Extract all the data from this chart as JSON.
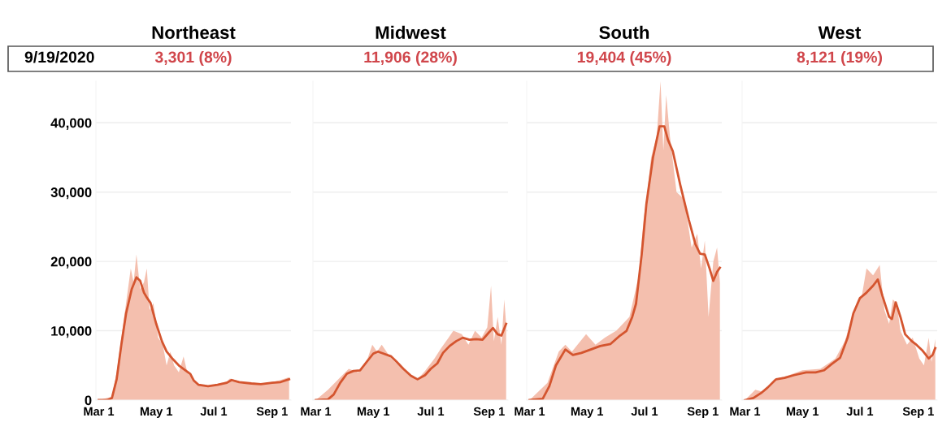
{
  "chart_data": [
    {
      "type": "area",
      "title": "Northeast",
      "annotations": [
        "9/19/2020",
        "3,301 (8%)"
      ],
      "xlim": [
        "2020-02-27",
        "2020-09-21"
      ],
      "xticks": [
        {
          "value": "2020-03-01",
          "label": "Mar 1"
        },
        {
          "value": "2020-05-01",
          "label": "May 1"
        },
        {
          "value": "2020-07-01",
          "label": "Jul 1"
        },
        {
          "value": "2020-09-01",
          "label": "Sep 1"
        }
      ],
      "ylim": [
        0,
        46000
      ],
      "yticks": [
        0,
        {
          "value": 10000,
          "label": "10,000"
        },
        {
          "value": 20000,
          "label": "20,000"
        },
        {
          "value": 30000,
          "label": "30,000"
        },
        {
          "value": 40000,
          "label": "40,000"
        }
      ],
      "grid": "y",
      "series": [
        {
          "color": "#f4bfae",
          "x": [
            "2020-03-01",
            "2020-03-15",
            "2020-03-20",
            "2020-03-25",
            "2020-03-30",
            "2020-04-04",
            "2020-04-07",
            "2020-04-10",
            "2020-04-14",
            "2020-04-18",
            "2020-04-21",
            "2020-04-24",
            "2020-04-28",
            "2020-05-03",
            "2020-05-08",
            "2020-05-12",
            "2020-05-16",
            "2020-05-20",
            "2020-05-25",
            "2020-05-30",
            "2020-06-03",
            "2020-06-10",
            "2020-06-20",
            "2020-07-01",
            "2020-07-15",
            "2020-07-18",
            "2020-08-01",
            "2020-08-20",
            "2020-09-01",
            "2020-09-10",
            "2020-09-19"
          ],
          "values": [
            0,
            500,
            4000,
            9000,
            14000,
            19000,
            17000,
            21000,
            16000,
            17000,
            19000,
            13000,
            14000,
            9000,
            8000,
            5000,
            7000,
            5000,
            4000,
            6300,
            4000,
            2700,
            2000,
            2200,
            2700,
            3100,
            2600,
            2400,
            2600,
            2900,
            3300
          ]
        },
        {
          "type": "line",
          "color": "#d4552f",
          "x": [
            "2020-03-01",
            "2020-03-10",
            "2020-03-15",
            "2020-03-20",
            "2020-03-25",
            "2020-03-30",
            "2020-04-05",
            "2020-04-10",
            "2020-04-14",
            "2020-04-18",
            "2020-04-21",
            "2020-04-25",
            "2020-05-01",
            "2020-05-07",
            "2020-05-12",
            "2020-05-18",
            "2020-05-25",
            "2020-06-01",
            "2020-06-06",
            "2020-06-10",
            "2020-06-15",
            "2020-06-25",
            "2020-07-05",
            "2020-07-15",
            "2020-07-20",
            "2020-07-28",
            "2020-08-10",
            "2020-08-20",
            "2020-09-01",
            "2020-09-10",
            "2020-09-19"
          ],
          "values": [
            0,
            0,
            300,
            3000,
            8000,
            12500,
            16000,
            17700,
            17200,
            15500,
            14800,
            14000,
            11000,
            8500,
            7000,
            6000,
            5000,
            4300,
            3800,
            2800,
            2200,
            2000,
            2200,
            2500,
            2900,
            2600,
            2400,
            2300,
            2500,
            2600,
            3000
          ]
        }
      ]
    },
    {
      "type": "area",
      "title": "Midwest",
      "annotations": [
        "11,906 (28%)"
      ],
      "tick_labels": "x",
      "xlim": [
        "2020-02-27",
        "2020-09-21"
      ],
      "xticks": [
        {
          "value": "2020-03-01",
          "label": "Mar 1"
        },
        {
          "value": "2020-05-01",
          "label": "May 1"
        },
        {
          "value": "2020-07-01",
          "label": "Jul 1"
        },
        {
          "value": "2020-09-01",
          "label": "Sep 1"
        }
      ],
      "ylim": [
        0,
        46000
      ],
      "yticks": [
        0,
        10000,
        20000,
        30000,
        40000
      ],
      "grid": "y",
      "series": [
        {
          "color": "#f4bfae",
          "x": [
            "2020-03-01",
            "2020-03-14",
            "2020-03-25",
            "2020-04-05",
            "2020-04-15",
            "2020-04-25",
            "2020-04-30",
            "2020-05-05",
            "2020-05-10",
            "2020-05-20",
            "2020-06-01",
            "2020-06-17",
            "2020-06-25",
            "2020-07-05",
            "2020-07-12",
            "2020-07-20",
            "2020-07-25",
            "2020-08-03",
            "2020-08-10",
            "2020-08-17",
            "2020-08-24",
            "2020-08-30",
            "2020-09-03",
            "2020-09-06",
            "2020-09-10",
            "2020-09-14",
            "2020-09-17",
            "2020-09-19"
          ],
          "values": [
            0,
            1500,
            3000,
            4500,
            4000,
            6000,
            8000,
            7000,
            8000,
            6000,
            4500,
            3000,
            4200,
            6000,
            7500,
            9000,
            10000,
            9500,
            8000,
            10000,
            9000,
            10500,
            16500,
            8500,
            12000,
            8000,
            14500,
            11000
          ]
        },
        {
          "type": "line",
          "color": "#d4552f",
          "x": [
            "2020-03-01",
            "2020-03-14",
            "2020-03-20",
            "2020-03-27",
            "2020-04-03",
            "2020-04-10",
            "2020-04-17",
            "2020-04-24",
            "2020-05-01",
            "2020-05-06",
            "2020-05-12",
            "2020-05-20",
            "2020-05-26",
            "2020-06-02",
            "2020-06-10",
            "2020-06-17",
            "2020-06-25",
            "2020-07-01",
            "2020-07-08",
            "2020-07-14",
            "2020-07-21",
            "2020-07-28",
            "2020-08-04",
            "2020-08-11",
            "2020-08-18",
            "2020-08-25",
            "2020-09-01",
            "2020-09-05",
            "2020-09-10",
            "2020-09-14",
            "2020-09-19"
          ],
          "values": [
            0,
            100,
            800,
            2500,
            3800,
            4200,
            4300,
            5500,
            6700,
            7000,
            6700,
            6300,
            5500,
            4500,
            3500,
            3000,
            3600,
            4500,
            5300,
            6800,
            7800,
            8500,
            9000,
            8700,
            8800,
            8700,
            9800,
            10400,
            9500,
            9300,
            11000
          ]
        }
      ]
    },
    {
      "type": "area",
      "title": "South",
      "annotations": [
        "19,404 (45%)"
      ],
      "tick_labels": "x",
      "xlim": [
        "2020-02-27",
        "2020-09-21"
      ],
      "xticks": [
        {
          "value": "2020-03-01",
          "label": "Mar 1"
        },
        {
          "value": "2020-05-01",
          "label": "May 1"
        },
        {
          "value": "2020-07-01",
          "label": "Jul 1"
        },
        {
          "value": "2020-09-01",
          "label": "Sep 1"
        }
      ],
      "ylim": [
        0,
        46000
      ],
      "yticks": [
        0,
        10000,
        20000,
        30000,
        40000
      ],
      "grid": "y",
      "series": [
        {
          "color": "#f4bfae",
          "x": [
            "2020-03-01",
            "2020-03-20",
            "2020-04-01",
            "2020-04-08",
            "2020-04-15",
            "2020-04-30",
            "2020-05-10",
            "2020-05-20",
            "2020-06-01",
            "2020-06-15",
            "2020-06-25",
            "2020-06-30",
            "2020-07-04",
            "2020-07-08",
            "2020-07-14",
            "2020-07-18",
            "2020-07-21",
            "2020-07-24",
            "2020-07-28",
            "2020-08-04",
            "2020-08-12",
            "2020-08-20",
            "2020-08-26",
            "2020-08-30",
            "2020-09-03",
            "2020-09-07",
            "2020-09-12",
            "2020-09-16",
            "2020-09-19"
          ],
          "values": [
            0,
            2500,
            7000,
            8000,
            7000,
            9500,
            8000,
            9000,
            10000,
            12000,
            18000,
            26000,
            30000,
            35000,
            38000,
            46000,
            36000,
            44000,
            38000,
            30000,
            29000,
            22000,
            24000,
            19000,
            23000,
            12000,
            20000,
            22000,
            17000
          ]
        },
        {
          "type": "line",
          "color": "#d4552f",
          "x": [
            "2020-03-01",
            "2020-03-15",
            "2020-03-22",
            "2020-03-29",
            "2020-04-08",
            "2020-04-16",
            "2020-04-25",
            "2020-05-05",
            "2020-05-15",
            "2020-05-26",
            "2020-06-05",
            "2020-06-12",
            "2020-06-18",
            "2020-06-22",
            "2020-06-28",
            "2020-07-03",
            "2020-07-10",
            "2020-07-17",
            "2020-07-22",
            "2020-07-26",
            "2020-07-31",
            "2020-08-08",
            "2020-08-17",
            "2020-08-24",
            "2020-08-29",
            "2020-09-03",
            "2020-09-08",
            "2020-09-12",
            "2020-09-16",
            "2020-09-19"
          ],
          "values": [
            0,
            200,
            2000,
            5000,
            7300,
            6500,
            6800,
            7300,
            7800,
            8100,
            9300,
            10000,
            12000,
            13900,
            21000,
            28300,
            35000,
            39500,
            39500,
            37500,
            35900,
            31000,
            26000,
            22500,
            21100,
            21000,
            19000,
            17200,
            18500,
            19100
          ]
        }
      ]
    },
    {
      "type": "area",
      "title": "West",
      "annotations": [
        "8,121 (19%)"
      ],
      "tick_labels": "x",
      "xlim": [
        "2020-02-27",
        "2020-09-21"
      ],
      "xticks": [
        {
          "value": "2020-03-01",
          "label": "Mar 1"
        },
        {
          "value": "2020-05-01",
          "label": "May 1"
        },
        {
          "value": "2020-07-01",
          "label": "Jul 1"
        },
        {
          "value": "2020-09-01",
          "label": "Sep 1"
        }
      ],
      "ylim": [
        0,
        46000
      ],
      "yticks": [
        0,
        10000,
        20000,
        30000,
        40000
      ],
      "grid": "y",
      "series": [
        {
          "color": "#f4bfae",
          "x": [
            "2020-03-01",
            "2020-03-12",
            "2020-03-20",
            "2020-04-01",
            "2020-04-15",
            "2020-05-01",
            "2020-05-20",
            "2020-06-05",
            "2020-06-15",
            "2020-06-25",
            "2020-07-03",
            "2020-07-08",
            "2020-07-15",
            "2020-07-22",
            "2020-07-27",
            "2020-08-01",
            "2020-08-05",
            "2020-08-09",
            "2020-08-13",
            "2020-08-20",
            "2020-08-26",
            "2020-09-02",
            "2020-09-07",
            "2020-09-12",
            "2020-09-15",
            "2020-09-19"
          ],
          "values": [
            0,
            1500,
            1200,
            3000,
            3500,
            4300,
            4500,
            6000,
            8500,
            13000,
            15000,
            19000,
            18000,
            19500,
            13000,
            11000,
            14500,
            14000,
            10000,
            8000,
            9000,
            6000,
            5000,
            9000,
            5500,
            8800
          ]
        },
        {
          "type": "line",
          "color": "#d4552f",
          "x": [
            "2020-03-01",
            "2020-03-10",
            "2020-03-18",
            "2020-03-25",
            "2020-04-03",
            "2020-04-12",
            "2020-04-22",
            "2020-05-05",
            "2020-05-15",
            "2020-05-24",
            "2020-06-01",
            "2020-06-10",
            "2020-06-18",
            "2020-06-24",
            "2020-07-01",
            "2020-07-08",
            "2020-07-15",
            "2020-07-20",
            "2020-07-25",
            "2020-08-01",
            "2020-08-04",
            "2020-08-08",
            "2020-08-13",
            "2020-08-18",
            "2020-08-25",
            "2020-08-29",
            "2020-09-05",
            "2020-09-12",
            "2020-09-16",
            "2020-09-19"
          ],
          "values": [
            0,
            300,
            1000,
            1800,
            3000,
            3200,
            3600,
            4000,
            4000,
            4300,
            5200,
            6100,
            9000,
            12500,
            14700,
            15500,
            16500,
            17400,
            15000,
            12000,
            11700,
            14100,
            12000,
            9500,
            8500,
            8100,
            7200,
            6000,
            6500,
            7500
          ]
        }
      ]
    }
  ]
}
